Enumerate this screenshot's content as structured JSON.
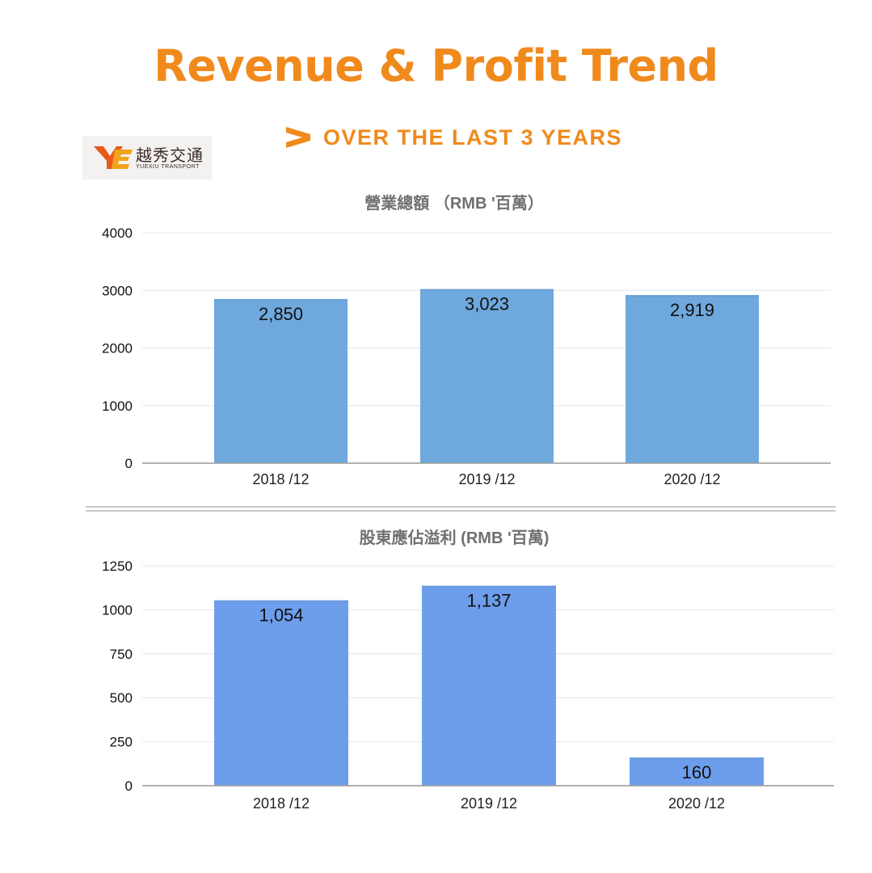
{
  "header": {
    "title": "Revenue & Profit Trend",
    "subtitle": "OVER THE LAST 3 YEARS"
  },
  "logo": {
    "name_cn": "越秀交通",
    "name_en": "YUEXIU TRANSPORT"
  },
  "colors": {
    "accent": "#f08a1c",
    "revenue_bar": "#6fa8dc",
    "profit_bar": "#6d9eeb",
    "gridline": "#e6e6e6",
    "axis": "#9a9a9a"
  },
  "chart_data": [
    {
      "type": "bar",
      "title": "營業總額 （RMB '百萬）",
      "categories": [
        "2018 /12",
        "2019 /12",
        "2020 /12"
      ],
      "values": [
        2850,
        3023,
        2919
      ],
      "data_labels": [
        "2,850",
        "3,023",
        "2,919"
      ],
      "ylim": [
        0,
        4000
      ],
      "yticks": [
        0,
        1000,
        2000,
        3000,
        4000
      ],
      "grid": true,
      "color": "#6fa8dc"
    },
    {
      "type": "bar",
      "title": "股東應佔溢利 (RMB '百萬)",
      "categories": [
        "2018 /12",
        "2019 /12",
        "2020 /12"
      ],
      "values": [
        1054,
        1137,
        160
      ],
      "data_labels": [
        "1,054",
        "1,137",
        "160"
      ],
      "ylim": [
        0,
        1250
      ],
      "yticks": [
        0,
        250,
        500,
        750,
        1000,
        1250
      ],
      "grid": true,
      "color": "#6d9eeb"
    }
  ]
}
